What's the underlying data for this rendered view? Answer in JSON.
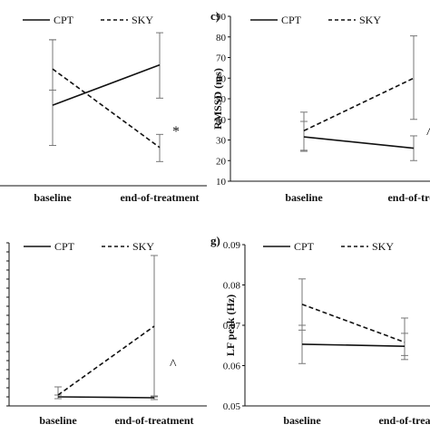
{
  "chart_data": [
    {
      "id": "top-left",
      "type": "line",
      "panel_label": "",
      "title": "",
      "ylabel": "",
      "xlabel": "",
      "categories": [
        "baseline",
        "end-of-treatment"
      ],
      "legend": [
        "CPT",
        "SKY"
      ],
      "legend_position": "top",
      "series": [
        {
          "name": "CPT",
          "style": "solid",
          "values": [
            100,
            140
          ],
          "err_low": [
            60,
            107
          ],
          "err_high": [
            165,
            172
          ]
        },
        {
          "name": "SKY",
          "style": "dashed",
          "values": [
            136,
            58
          ],
          "err_low": [
            115,
            44
          ],
          "err_high": [
            165,
            71
          ]
        }
      ],
      "ylim": [
        20,
        200
      ],
      "yticks_visible": false,
      "annotation": "*"
    },
    {
      "id": "top-right",
      "type": "line",
      "panel_label": "c)",
      "title": "",
      "ylabel": "RMSSD (ms)",
      "xlabel": "",
      "categories": [
        "baseline",
        "end-of-trea"
      ],
      "legend": [
        "CPT",
        "SKY"
      ],
      "legend_position": "top",
      "series": [
        {
          "name": "CPT",
          "style": "solid",
          "values": [
            31.5,
            26
          ],
          "err_low": [
            24.5,
            20
          ],
          "err_high": [
            39,
            32
          ]
        },
        {
          "name": "SKY",
          "style": "dashed",
          "values": [
            34.5,
            60
          ],
          "err_low": [
            25,
            40
          ],
          "err_high": [
            43.5,
            80.5
          ]
        }
      ],
      "ylim": [
        10,
        90
      ],
      "yticks": [
        10,
        20,
        30,
        40,
        50,
        60,
        70,
        80,
        90
      ],
      "annotation": "^"
    },
    {
      "id": "bottom-left",
      "type": "line",
      "panel_label": "",
      "title": "",
      "ylabel": "",
      "xlabel": "",
      "categories": [
        "baseline",
        "end-of-treatment"
      ],
      "legend": [
        "CPT",
        "SKY"
      ],
      "legend_position": "top",
      "series": [
        {
          "name": "CPT",
          "style": "solid",
          "values": [
            10,
            9
          ],
          "err_low": [
            8,
            7
          ],
          "err_high": [
            12,
            11
          ]
        },
        {
          "name": "SKY",
          "style": "dashed",
          "values": [
            12,
            88
          ],
          "err_low": [
            8,
            10
          ],
          "err_high": [
            21,
            166
          ]
        }
      ],
      "ylim": [
        0,
        180
      ],
      "yticks_visible": false,
      "annotation": "^"
    },
    {
      "id": "bottom-right",
      "type": "line",
      "panel_label": "g)",
      "title": "",
      "ylabel": "LF peak (Hz)",
      "xlabel": "",
      "categories": [
        "baseline",
        "end-of-trea"
      ],
      "legend": [
        "CPT",
        "SKY"
      ],
      "legend_position": "top",
      "series": [
        {
          "name": "CPT",
          "style": "solid",
          "values": [
            0.0653,
            0.0648
          ],
          "err_low": [
            0.0605,
            0.0615
          ],
          "err_high": [
            0.07,
            0.068
          ]
        },
        {
          "name": "SKY",
          "style": "dashed",
          "values": [
            0.0752,
            0.0658
          ],
          "err_low": [
            0.0688,
            0.0625
          ],
          "err_high": [
            0.0815,
            0.0718
          ]
        }
      ],
      "ylim": [
        0.05,
        0.09
      ],
      "yticks": [
        "0.05",
        "0.06",
        "0.07",
        "0.08",
        "0.09"
      ]
    }
  ]
}
